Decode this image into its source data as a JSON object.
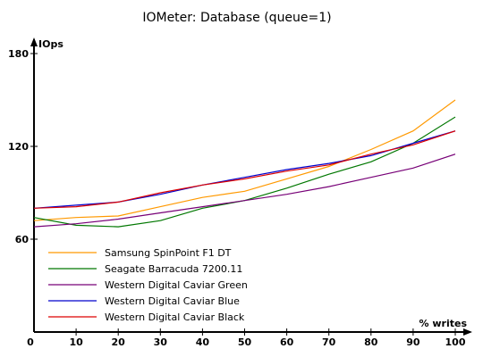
{
  "chart_data": {
    "type": "line",
    "title": "IOMeter: Database (queue=1)",
    "xlabel": "% writes",
    "ylabel": "IOps",
    "xlim": [
      0,
      100
    ],
    "ylim": [
      0,
      180
    ],
    "x": [
      0,
      10,
      20,
      30,
      40,
      50,
      60,
      70,
      80,
      90,
      100
    ],
    "xticks": [
      0,
      10,
      20,
      30,
      40,
      50,
      60,
      70,
      80,
      90,
      100
    ],
    "yticks": [
      60,
      120,
      180
    ],
    "grid": false,
    "legend_position": "bottom-left",
    "series": [
      {
        "name": "Samsung SpinPoint F1 DT",
        "color": "#ff9900",
        "values": [
          72,
          74,
          75,
          81,
          87,
          91,
          99,
          107,
          118,
          130,
          150
        ]
      },
      {
        "name": "Seagate Barracuda 7200.11",
        "color": "#007700",
        "values": [
          74,
          69,
          68,
          72,
          80,
          85,
          93,
          102,
          110,
          122,
          139
        ]
      },
      {
        "name": "Western Digital Caviar Green",
        "color": "#770077",
        "values": [
          68,
          70,
          73,
          77,
          81,
          85,
          89,
          94,
          100,
          106,
          115
        ]
      },
      {
        "name": "Western Digital Caviar Blue",
        "color": "#0000cc",
        "values": [
          80,
          82,
          84,
          89,
          95,
          100,
          105,
          109,
          114,
          122,
          130
        ]
      },
      {
        "name": "Western Digital Caviar Black",
        "color": "#dd0000",
        "values": [
          80,
          81,
          84,
          90,
          95,
          99,
          104,
          108,
          115,
          121,
          130
        ]
      }
    ]
  }
}
